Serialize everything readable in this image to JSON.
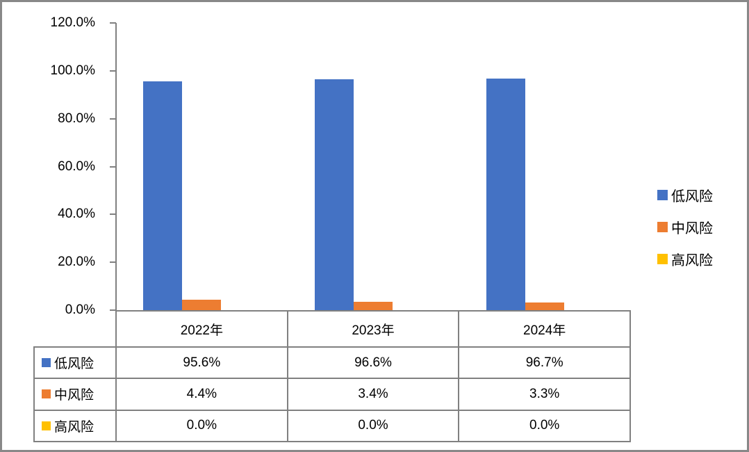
{
  "chart_data": {
    "type": "bar",
    "title": "",
    "categories": [
      "2022年",
      "2023年",
      "2024年"
    ],
    "series": [
      {
        "name": "低风险",
        "color": "#4472C4",
        "values": [
          95.6,
          96.6,
          96.7
        ],
        "display_values": [
          "95.6%",
          "96.6%",
          "96.7%"
        ]
      },
      {
        "name": "中风险",
        "color": "#ED7D31",
        "values": [
          4.4,
          3.4,
          3.3
        ],
        "display_values": [
          "4.4%",
          "3.4%",
          "3.3%"
        ]
      },
      {
        "name": "高风险",
        "color": "#FFC000",
        "values": [
          0.0,
          0.0,
          0.0
        ],
        "display_values": [
          "0.0%",
          "0.0%",
          "0.0%"
        ]
      }
    ],
    "y_axis": {
      "min": 0,
      "max": 120,
      "step": 20,
      "tick_labels": [
        "0.0%",
        "20.0%",
        "40.0%",
        "60.0%",
        "80.0%",
        "100.0%",
        "120.0%"
      ]
    },
    "legend": {
      "position": "right",
      "items": [
        {
          "label": "低风险",
          "color": "#4472C4"
        },
        {
          "label": "中风险",
          "color": "#ED7D31"
        },
        {
          "label": "高风险",
          "color": "#FFC000"
        }
      ]
    },
    "grid": false,
    "data_table_shown": true
  },
  "colors": {
    "bar_blue": "#4472C4",
    "bar_orange": "#ED7D31",
    "bar_yellow": "#FFC000",
    "axis_gray": "#808080",
    "frame_gray": "#888888"
  }
}
